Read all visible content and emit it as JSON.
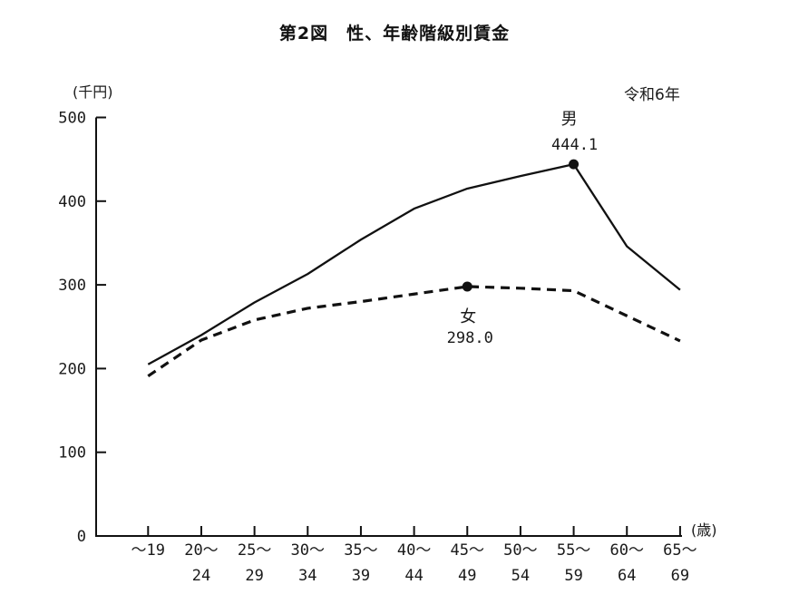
{
  "title": "第2図　性、年齢階級別賃金",
  "year_label": "令和6年",
  "y_axis_unit": "(千円)",
  "x_axis_unit": "(歳)",
  "chart_data": {
    "type": "line",
    "title": "第2図　性、年齢階級別賃金",
    "subtitle": "令和6年",
    "ylabel": "千円",
    "xlabel": "歳",
    "ylim": [
      0,
      500
    ],
    "yticks": [
      0,
      100,
      200,
      300,
      400,
      500
    ],
    "grid": false,
    "legend_position": "inline-annotations",
    "categories": [
      {
        "line1": "〜19",
        "line2": ""
      },
      {
        "line1": "20〜",
        "line2": "24"
      },
      {
        "line1": "25〜",
        "line2": "29"
      },
      {
        "line1": "30〜",
        "line2": "34"
      },
      {
        "line1": "35〜",
        "line2": "39"
      },
      {
        "line1": "40〜",
        "line2": "44"
      },
      {
        "line1": "45〜",
        "line2": "49"
      },
      {
        "line1": "50〜",
        "line2": "54"
      },
      {
        "line1": "55〜",
        "line2": "59"
      },
      {
        "line1": "60〜",
        "line2": "64"
      },
      {
        "line1": "65〜",
        "line2": "69"
      }
    ],
    "series": [
      {
        "id": "male",
        "name": "男",
        "line_style": "solid",
        "values": [
          205,
          240,
          279,
          313,
          354,
          391,
          415,
          430,
          444.1,
          346,
          294
        ],
        "marker_index": 8,
        "marker_value_label": "444.1"
      },
      {
        "id": "female",
        "name": "女",
        "line_style": "dashed",
        "values": [
          191,
          234,
          258,
          272,
          280,
          289,
          298.0,
          296,
          293,
          263,
          233
        ],
        "marker_index": 6,
        "marker_value_label": "298.0"
      }
    ],
    "line_color": "#111111"
  }
}
